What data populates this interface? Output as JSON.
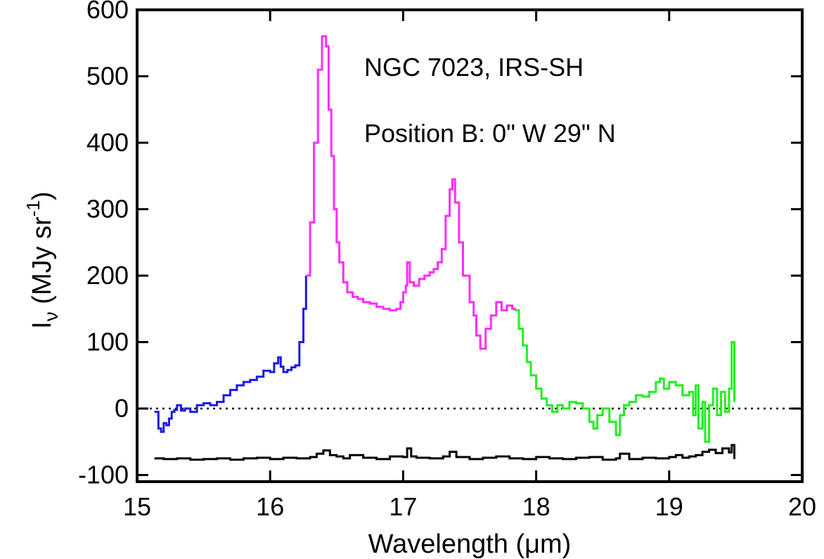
{
  "chart_data": {
    "type": "line",
    "annotations": [
      "NGC 7023, IRS-SH",
      "Position B: 0\" W 29\" N"
    ],
    "xlabel": "Wavelength (μm)",
    "ylabel": {
      "symbol": "I",
      "subscript": "ν",
      "units_main": " (MJy sr",
      "units_sup": "-1",
      "units_close": ")"
    },
    "xlim": [
      15,
      20
    ],
    "ylim": [
      -110,
      600
    ],
    "x_ticks": [
      15,
      16,
      17,
      18,
      19,
      20
    ],
    "x_tick_labels": [
      "15",
      "16",
      "17",
      "18",
      "19",
      "20"
    ],
    "y_ticks": [
      -100,
      0,
      100,
      200,
      300,
      400,
      500,
      600
    ],
    "y_tick_labels": [
      "-100",
      "0",
      "100",
      "200",
      "300",
      "400",
      "500",
      "600"
    ],
    "zero_line": 0,
    "series": [
      {
        "color": "#1a1ae6",
        "x": [
          15.13,
          15.16,
          15.18,
          15.2,
          15.22,
          15.24,
          15.26,
          15.28,
          15.3,
          15.33,
          15.36,
          15.4,
          15.45,
          15.5,
          15.55,
          15.6,
          15.65,
          15.7,
          15.75,
          15.8,
          15.85,
          15.9,
          15.95,
          16.0,
          16.03,
          16.06,
          16.08,
          16.1,
          16.13,
          16.16,
          16.19,
          16.22,
          16.25,
          16.27
        ],
        "y": [
          -5,
          -30,
          -35,
          -22,
          -25,
          -15,
          -5,
          -2,
          5,
          -3,
          0,
          -5,
          5,
          8,
          5,
          10,
          20,
          28,
          35,
          40,
          43,
          48,
          57,
          55,
          68,
          77,
          63,
          55,
          58,
          62,
          65,
          100,
          150,
          200
        ]
      },
      {
        "color": "#ff2cff",
        "x": [
          16.27,
          16.3,
          16.33,
          16.36,
          16.39,
          16.42,
          16.44,
          16.46,
          16.48,
          16.5,
          16.52,
          16.55,
          16.58,
          16.62,
          16.66,
          16.7,
          16.75,
          16.8,
          16.85,
          16.9,
          16.95,
          16.98,
          17.0,
          17.02,
          17.03,
          17.05,
          17.08,
          17.12,
          17.16,
          17.2,
          17.23,
          17.26,
          17.29,
          17.32,
          17.35,
          17.37,
          17.39,
          17.42,
          17.45,
          17.5,
          17.53,
          17.55,
          17.58,
          17.62,
          17.66,
          17.7,
          17.74,
          17.78,
          17.82,
          17.84
        ],
        "y": [
          200,
          280,
          400,
          510,
          560,
          545,
          450,
          380,
          300,
          250,
          220,
          190,
          175,
          168,
          165,
          160,
          158,
          153,
          150,
          148,
          150,
          160,
          175,
          185,
          220,
          190,
          185,
          195,
          200,
          205,
          210,
          220,
          240,
          290,
          330,
          345,
          310,
          250,
          200,
          160,
          140,
          110,
          90,
          120,
          140,
          160,
          148,
          155,
          150,
          148
        ]
      },
      {
        "color": "#22ee22",
        "x": [
          17.84,
          17.87,
          17.9,
          17.93,
          17.96,
          18.0,
          18.04,
          18.08,
          18.12,
          18.16,
          18.2,
          18.25,
          18.3,
          18.35,
          18.4,
          18.43,
          18.46,
          18.5,
          18.55,
          18.6,
          18.63,
          18.66,
          18.7,
          18.75,
          18.8,
          18.85,
          18.9,
          18.93,
          18.96,
          19.0,
          19.05,
          19.1,
          19.15,
          19.18,
          19.2,
          19.22,
          19.25,
          19.27,
          19.3,
          19.33,
          19.36,
          19.39,
          19.42,
          19.45,
          19.47,
          19.49
        ],
        "y": [
          148,
          120,
          95,
          70,
          50,
          30,
          15,
          5,
          -5,
          5,
          0,
          10,
          8,
          0,
          -20,
          -30,
          -10,
          0,
          -20,
          -40,
          -10,
          5,
          10,
          20,
          18,
          25,
          40,
          45,
          30,
          40,
          35,
          20,
          25,
          -10,
          35,
          -30,
          10,
          -50,
          5,
          30,
          -10,
          25,
          -5,
          30,
          100,
          10
        ]
      },
      {
        "color": "#000000",
        "x": [
          15.13,
          15.2,
          15.3,
          15.4,
          15.5,
          15.6,
          15.7,
          15.8,
          15.9,
          16.0,
          16.1,
          16.2,
          16.3,
          16.35,
          16.4,
          16.45,
          16.5,
          16.55,
          16.6,
          16.7,
          16.8,
          16.9,
          17.0,
          17.03,
          17.06,
          17.1,
          17.2,
          17.3,
          17.35,
          17.4,
          17.5,
          17.6,
          17.7,
          17.8,
          17.9,
          18.0,
          18.1,
          18.2,
          18.3,
          18.4,
          18.5,
          18.6,
          18.63,
          18.7,
          18.8,
          18.9,
          19.0,
          19.05,
          19.1,
          19.15,
          19.2,
          19.25,
          19.3,
          19.35,
          19.4,
          19.45,
          19.47,
          19.49
        ],
        "y": [
          -75,
          -76,
          -75,
          -77,
          -76,
          -75,
          -77,
          -75,
          -74,
          -76,
          -74,
          -75,
          -73,
          -68,
          -63,
          -70,
          -72,
          -75,
          -70,
          -74,
          -76,
          -72,
          -73,
          -60,
          -72,
          -74,
          -75,
          -72,
          -65,
          -73,
          -76,
          -74,
          -72,
          -75,
          -76,
          -73,
          -75,
          -76,
          -74,
          -73,
          -77,
          -75,
          -68,
          -76,
          -74,
          -75,
          -73,
          -70,
          -74,
          -72,
          -70,
          -65,
          -62,
          -67,
          -60,
          -66,
          -55,
          -76
        ]
      }
    ]
  }
}
